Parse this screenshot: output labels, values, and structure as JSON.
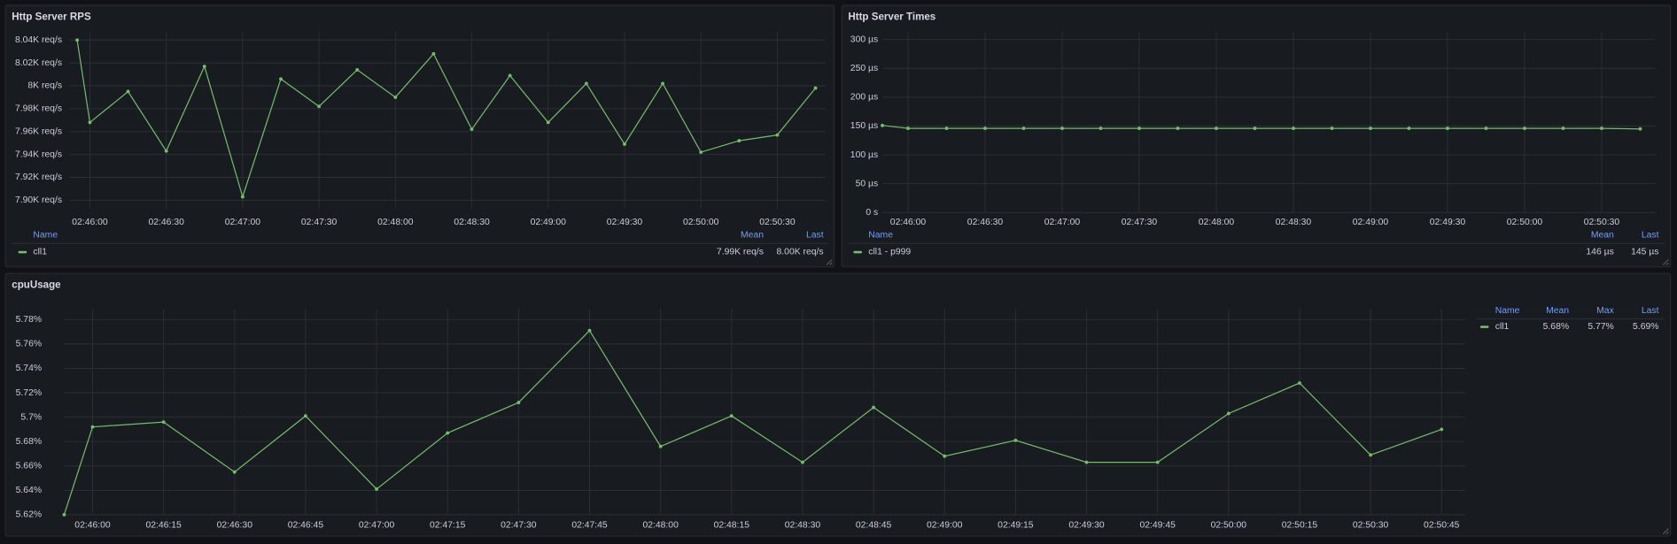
{
  "chart_data": [
    {
      "type": "line",
      "title": "Http Server RPS",
      "x": [
        "02:45:55",
        "02:46:00",
        "02:46:15",
        "02:46:30",
        "02:46:45",
        "02:47:00",
        "02:47:15",
        "02:47:30",
        "02:47:45",
        "02:48:00",
        "02:48:15",
        "02:48:30",
        "02:48:45",
        "02:49:00",
        "02:49:15",
        "02:49:30",
        "02:49:45",
        "02:50:00",
        "02:50:15",
        "02:50:30",
        "02:50:45"
      ],
      "series": [
        {
          "name": "cll1",
          "color": "#73bf69",
          "values": [
            8040,
            7968,
            7995,
            7943,
            8017,
            7903,
            8006,
            7982,
            8014,
            7990,
            8028,
            7962,
            8009,
            7968,
            8002,
            7949,
            8002,
            7942,
            7952,
            7957,
            7998
          ],
          "stats": [
            "7.99K req/s",
            "8.00K req/s"
          ]
        }
      ],
      "xlim": [
        "02:45:52",
        "02:50:49"
      ],
      "xticks": [
        "02:46:00",
        "02:46:30",
        "02:47:00",
        "02:47:30",
        "02:48:00",
        "02:48:30",
        "02:49:00",
        "02:49:30",
        "02:50:00",
        "02:50:30"
      ],
      "ylim": [
        7893,
        8047
      ],
      "yticks": [
        {
          "value": 7900,
          "label": "7.90K req/s"
        },
        {
          "value": 7920,
          "label": "7.92K req/s"
        },
        {
          "value": 7940,
          "label": "7.94K req/s"
        },
        {
          "value": 7960,
          "label": "7.96K req/s"
        },
        {
          "value": 7980,
          "label": "7.98K req/s"
        },
        {
          "value": 8000,
          "label": "8K req/s"
        },
        {
          "value": 8020,
          "label": "8.02K req/s"
        },
        {
          "value": 8040,
          "label": "8.04K req/s"
        }
      ],
      "grid": true,
      "legend": {
        "position": "bottom",
        "columns": [
          "Name",
          "Mean",
          "Last"
        ]
      }
    },
    {
      "type": "line",
      "title": "Http Server Times",
      "x": [
        "02:45:50",
        "02:46:00",
        "02:46:15",
        "02:46:30",
        "02:46:45",
        "02:47:00",
        "02:47:15",
        "02:47:30",
        "02:47:45",
        "02:48:00",
        "02:48:15",
        "02:48:30",
        "02:48:45",
        "02:49:00",
        "02:49:15",
        "02:49:30",
        "02:49:45",
        "02:50:00",
        "02:50:15",
        "02:50:30",
        "02:50:45"
      ],
      "series": [
        {
          "name": "cll1 - p999",
          "color": "#73bf69",
          "values": [
            151,
            146,
            146,
            146,
            146,
            146,
            146,
            146,
            146,
            146,
            146,
            146,
            146,
            146,
            146,
            146,
            146,
            146,
            146,
            146,
            145
          ],
          "stats": [
            "146 µs",
            "145 µs"
          ]
        }
      ],
      "xlim": [
        "02:45:50",
        "02:50:51"
      ],
      "xticks": [
        "02:46:00",
        "02:46:30",
        "02:47:00",
        "02:47:30",
        "02:48:00",
        "02:48:30",
        "02:49:00",
        "02:49:30",
        "02:50:00",
        "02:50:30"
      ],
      "ylim": [
        0,
        313
      ],
      "yticks": [
        {
          "value": 0,
          "label": "0 s"
        },
        {
          "value": 50,
          "label": "50 µs"
        },
        {
          "value": 100,
          "label": "100 µs"
        },
        {
          "value": 150,
          "label": "150 µs"
        },
        {
          "value": 200,
          "label": "200 µs"
        },
        {
          "value": 250,
          "label": "250 µs"
        },
        {
          "value": 300,
          "label": "300 µs"
        }
      ],
      "grid": true,
      "legend": {
        "position": "bottom",
        "columns": [
          "Name",
          "Mean",
          "Last"
        ]
      }
    },
    {
      "type": "line",
      "title": "cpuUsage",
      "x": [
        "02:45:54",
        "02:46:00",
        "02:46:15",
        "02:46:30",
        "02:46:45",
        "02:47:00",
        "02:47:15",
        "02:47:30",
        "02:47:45",
        "02:48:00",
        "02:48:15",
        "02:48:30",
        "02:48:45",
        "02:49:00",
        "02:49:15",
        "02:49:30",
        "02:49:45",
        "02:50:00",
        "02:50:15",
        "02:50:30",
        "02:50:45"
      ],
      "series": [
        {
          "name": "cll1",
          "color": "#73bf69",
          "values": [
            5.62,
            5.692,
            5.696,
            5.655,
            5.701,
            5.641,
            5.687,
            5.712,
            5.771,
            5.676,
            5.701,
            5.663,
            5.708,
            5.668,
            5.681,
            5.663,
            5.663,
            5.703,
            5.728,
            5.669,
            5.69
          ],
          "stats": [
            "5.68%",
            "5.77%",
            "5.69%"
          ]
        }
      ],
      "xlim": [
        "02:45:54",
        "02:50:50"
      ],
      "xticks": [
        "02:46:00",
        "02:46:15",
        "02:46:30",
        "02:46:45",
        "02:47:00",
        "02:47:15",
        "02:47:30",
        "02:47:45",
        "02:48:00",
        "02:48:15",
        "02:48:30",
        "02:48:45",
        "02:49:00",
        "02:49:15",
        "02:49:30",
        "02:49:45",
        "02:50:00",
        "02:50:15",
        "02:50:30",
        "02:50:45"
      ],
      "ylim": [
        5.62,
        5.789
      ],
      "yticks": [
        {
          "value": 5.62,
          "label": "5.62%"
        },
        {
          "value": 5.64,
          "label": "5.64%"
        },
        {
          "value": 5.66,
          "label": "5.66%"
        },
        {
          "value": 5.68,
          "label": "5.68%"
        },
        {
          "value": 5.7,
          "label": "5.7%"
        },
        {
          "value": 5.72,
          "label": "5.72%"
        },
        {
          "value": 5.74,
          "label": "5.74%"
        },
        {
          "value": 5.76,
          "label": "5.76%"
        },
        {
          "value": 5.78,
          "label": "5.78%"
        }
      ],
      "grid": true,
      "legend": {
        "position": "right",
        "columns": [
          "Name",
          "Mean",
          "Max",
          "Last"
        ]
      }
    }
  ]
}
